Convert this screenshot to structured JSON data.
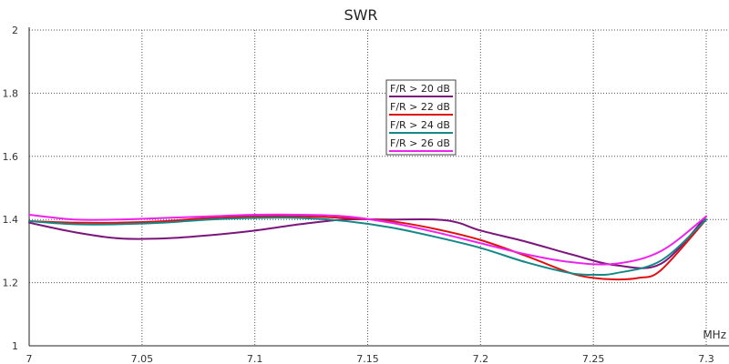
{
  "chart_data": {
    "type": "line",
    "title": "SWR",
    "xlabel": "MHz",
    "ylabel": "",
    "xlim": [
      7.0,
      7.3
    ],
    "ylim": [
      1.0,
      2.0
    ],
    "x_ticks": [
      7,
      7.05,
      7.1,
      7.15,
      7.2,
      7.25,
      7.3
    ],
    "x_tick_labels": [
      "7",
      "7.05",
      "7.1",
      "7.15",
      "7.2",
      "7.25",
      "7.3"
    ],
    "y_ticks": [
      1,
      1.2,
      1.4,
      1.6,
      1.8,
      2
    ],
    "y_tick_labels": [
      "1",
      "1.2",
      "1.4",
      "1.6",
      "1.8",
      "2"
    ],
    "grid": true,
    "legend_position": "center-top",
    "series": [
      {
        "name": "F/R > 20 dB",
        "color": "#7b157b",
        "x": [
          7.0,
          7.02,
          7.04,
          7.06,
          7.08,
          7.1,
          7.12,
          7.14,
          7.16,
          7.18,
          7.19,
          7.2,
          7.22,
          7.24,
          7.26,
          7.28,
          7.3
        ],
        "y": [
          1.39,
          1.36,
          1.34,
          1.34,
          1.35,
          1.365,
          1.385,
          1.4,
          1.4,
          1.4,
          1.39,
          1.365,
          1.33,
          1.29,
          1.255,
          1.26,
          1.41
        ]
      },
      {
        "name": "F/R > 22 dB",
        "color": "#e01010",
        "x": [
          7.0,
          7.02,
          7.04,
          7.06,
          7.08,
          7.1,
          7.12,
          7.14,
          7.16,
          7.18,
          7.2,
          7.22,
          7.24,
          7.25,
          7.26,
          7.27,
          7.28,
          7.3
        ],
        "y": [
          1.395,
          1.39,
          1.39,
          1.395,
          1.405,
          1.41,
          1.41,
          1.405,
          1.395,
          1.37,
          1.335,
          1.285,
          1.23,
          1.215,
          1.21,
          1.215,
          1.24,
          1.4
        ]
      },
      {
        "name": "F/R > 24 dB",
        "color": "#148787",
        "x": [
          7.0,
          7.02,
          7.04,
          7.06,
          7.08,
          7.1,
          7.12,
          7.14,
          7.16,
          7.18,
          7.2,
          7.22,
          7.24,
          7.25,
          7.26,
          7.28,
          7.3
        ],
        "y": [
          1.395,
          1.385,
          1.385,
          1.39,
          1.4,
          1.405,
          1.405,
          1.395,
          1.375,
          1.345,
          1.31,
          1.265,
          1.23,
          1.225,
          1.23,
          1.27,
          1.4
        ]
      },
      {
        "name": "F/R > 26 dB",
        "color": "#ee22ee",
        "x": [
          7.0,
          7.02,
          7.04,
          7.06,
          7.08,
          7.1,
          7.12,
          7.14,
          7.16,
          7.18,
          7.2,
          7.22,
          7.24,
          7.26,
          7.28,
          7.3
        ],
        "y": [
          1.415,
          1.4,
          1.4,
          1.405,
          1.41,
          1.415,
          1.415,
          1.41,
          1.39,
          1.36,
          1.325,
          1.29,
          1.265,
          1.26,
          1.3,
          1.41
        ]
      }
    ]
  }
}
